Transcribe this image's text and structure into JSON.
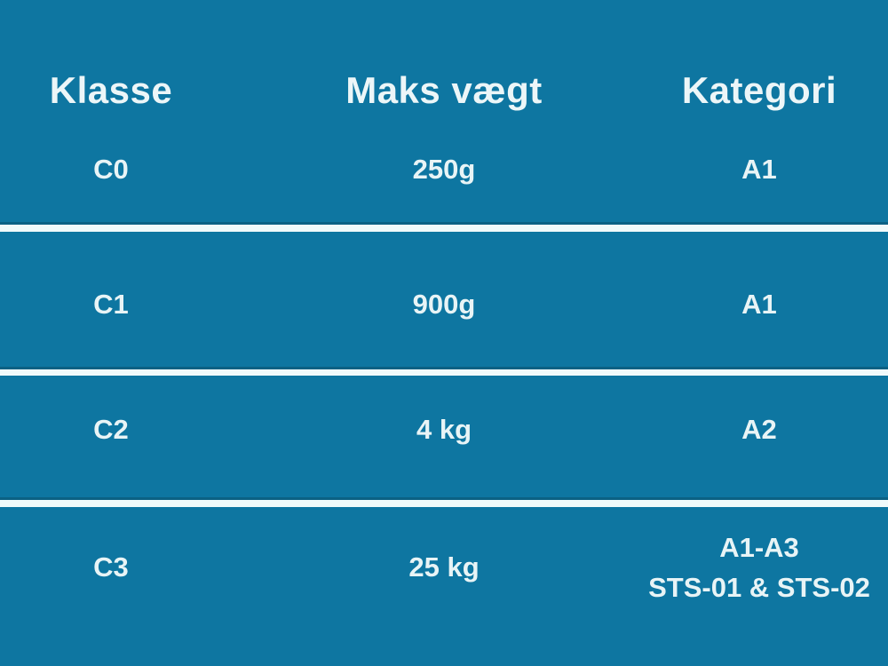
{
  "table": {
    "title_semantics": "Drone class / max weight / category table (Danish)",
    "colors": {
      "background": "#0e76a1",
      "text": "#eaf5f7",
      "divider": "#f0fafb",
      "divider_shadow": "#09506e"
    },
    "headers": {
      "klasse": "Klasse",
      "maks_vaegt": "Maks vægt",
      "kategori": "Kategori"
    },
    "rows": [
      {
        "klasse": "C0",
        "maks_vaegt": "250g",
        "kategori": "A1"
      },
      {
        "klasse": "C1",
        "maks_vaegt": "900g",
        "kategori": "A1"
      },
      {
        "klasse": "C2",
        "maks_vaegt": "4 kg",
        "kategori": "A2"
      },
      {
        "klasse": "C3",
        "maks_vaegt": "25 kg",
        "kategori": "A1-A3",
        "kategori_line2": "STS-01 & STS-02"
      }
    ]
  },
  "chart_data": {
    "type": "table",
    "columns": [
      "Klasse",
      "Maks vægt",
      "Kategori"
    ],
    "rows": [
      [
        "C0",
        "250g",
        "A1"
      ],
      [
        "C1",
        "900g",
        "A1"
      ],
      [
        "C2",
        "4 kg",
        "A2"
      ],
      [
        "C3",
        "25 kg",
        "A1-A3 STS-01 & STS-02"
      ]
    ],
    "title": "",
    "layout_hints": {
      "grid": "horizontal dividers only",
      "header_position": "top",
      "text_align": "center"
    }
  }
}
